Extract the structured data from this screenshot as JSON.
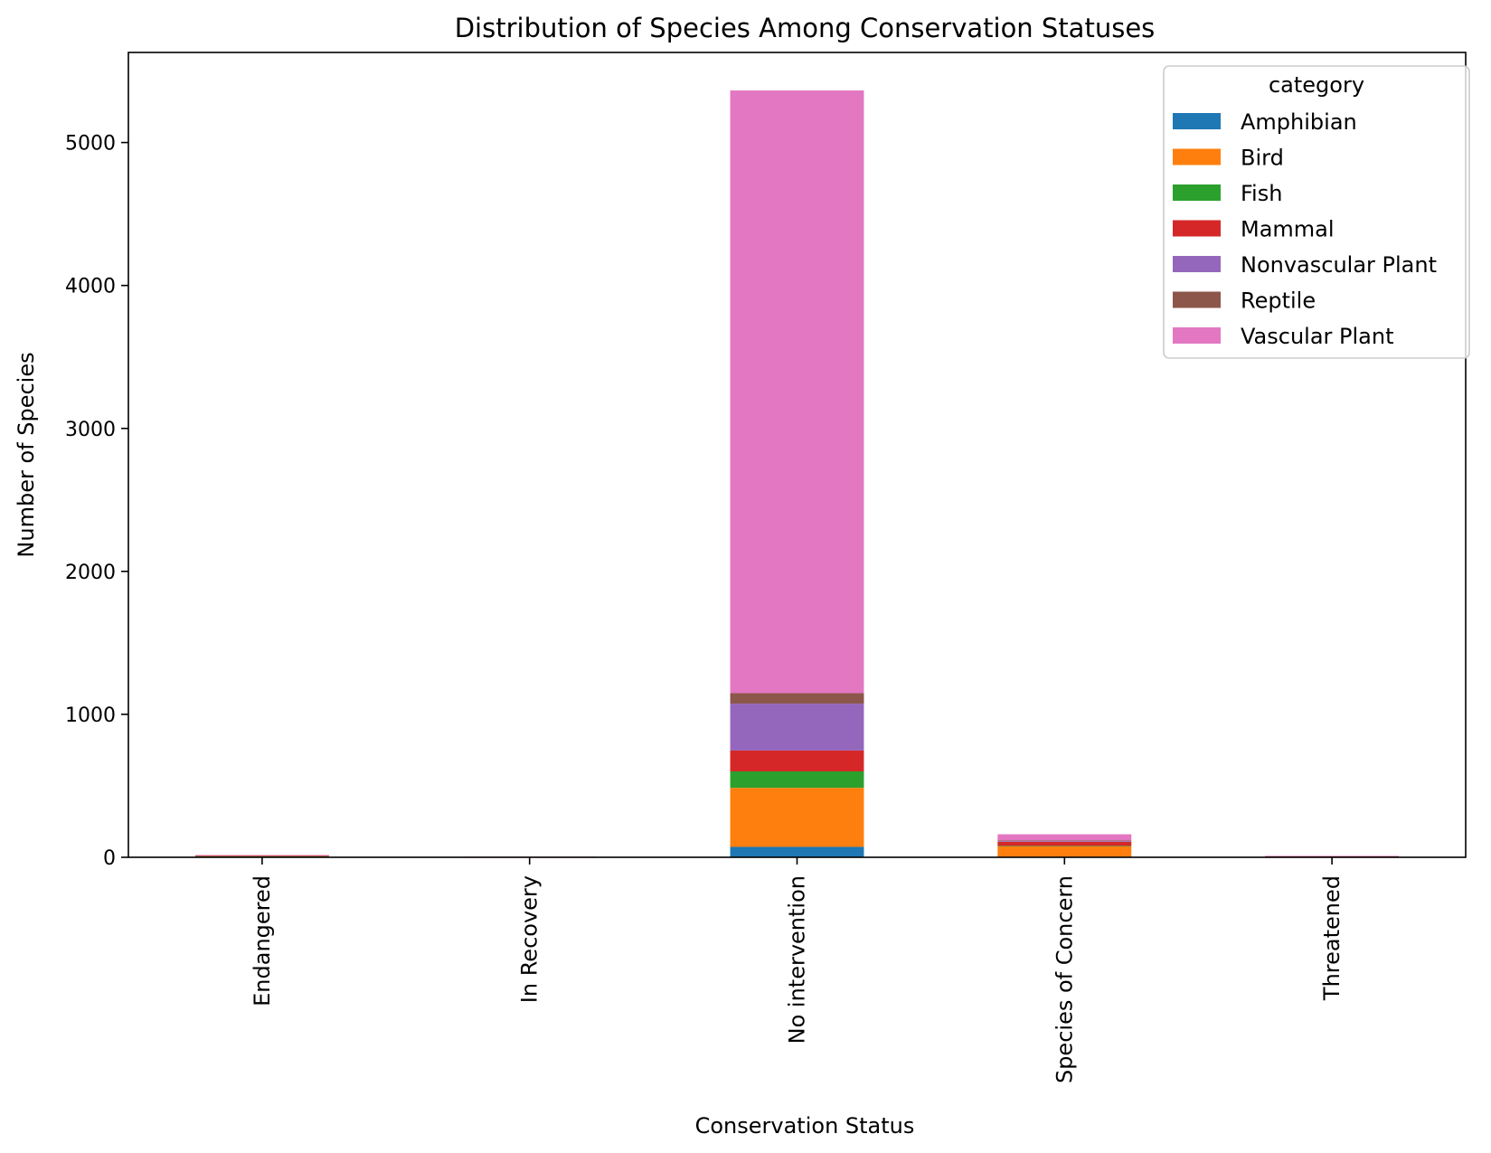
{
  "chart_data": {
    "type": "bar",
    "stacked": true,
    "title": "Distribution of Species Among Conservation Statuses",
    "xlabel": "Conservation Status",
    "ylabel": "Number of Species",
    "categories": [
      "Endangered",
      "In Recovery",
      "No intervention",
      "Species of Concern",
      "Threatened"
    ],
    "ylim": [
      0,
      5630
    ],
    "yticks": [
      0,
      1000,
      2000,
      3000,
      4000,
      5000
    ],
    "grid": false,
    "legend": {
      "title": "category",
      "position": "top-right"
    },
    "series": [
      {
        "name": "Amphibian",
        "color": "#1f77b4",
        "values": [
          1,
          0,
          73,
          4,
          2
        ]
      },
      {
        "name": "Bird",
        "color": "#ff7f0e",
        "values": [
          4,
          3,
          413,
          72,
          0
        ]
      },
      {
        "name": "Fish",
        "color": "#2ca02c",
        "values": [
          3,
          0,
          115,
          4,
          4
        ]
      },
      {
        "name": "Mammal",
        "color": "#d62728",
        "values": [
          7,
          1,
          146,
          28,
          2
        ]
      },
      {
        "name": "Nonvascular Plant",
        "color": "#9467bd",
        "values": [
          0,
          0,
          328,
          5,
          0
        ]
      },
      {
        "name": "Reptile",
        "color": "#8c564b",
        "values": [
          0,
          0,
          73,
          5,
          0
        ]
      },
      {
        "name": "Vascular Plant",
        "color": "#e377c2",
        "values": [
          1,
          0,
          4216,
          43,
          2
        ]
      }
    ]
  }
}
